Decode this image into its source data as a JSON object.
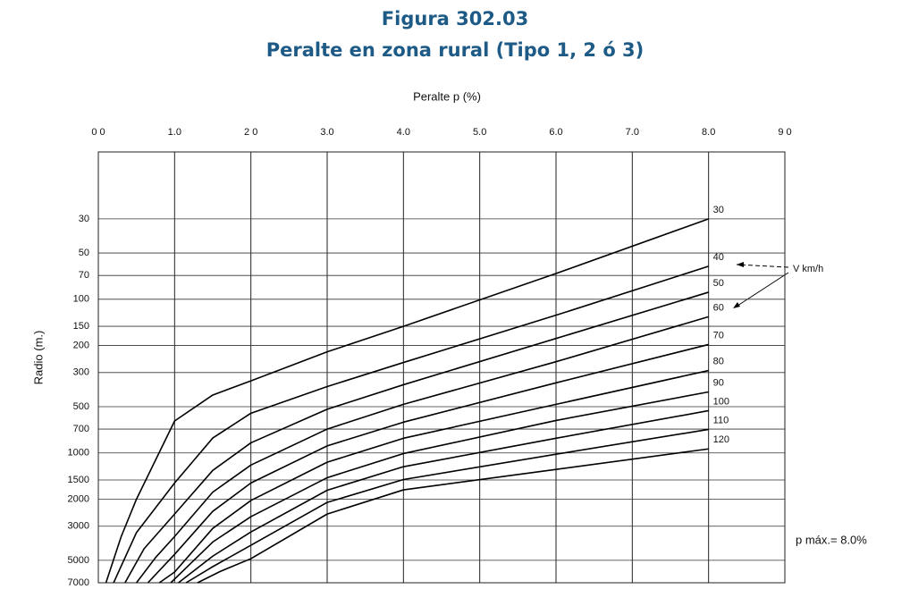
{
  "chart_data": {
    "type": "line",
    "title": "Figura 302.03",
    "subtitle": "Peralte en zona rural (Tipo 1, 2 ó 3)",
    "x_label": "Peralte p (%)",
    "y_label": "Radio (m.)",
    "annotations": [
      "V km/h",
      "p máx.= 8.0%"
    ],
    "xlim": [
      0,
      9
    ],
    "xticks": [
      {
        "value": 0,
        "label": "0 0"
      },
      {
        "value": 1,
        "label": "1.0"
      },
      {
        "value": 2,
        "label": "2 0"
      },
      {
        "value": 3,
        "label": "3.0"
      },
      {
        "value": 4,
        "label": "4.0"
      },
      {
        "value": 5,
        "label": "5.0"
      },
      {
        "value": 6,
        "label": "6.0"
      },
      {
        "value": 7,
        "label": "7.0"
      },
      {
        "value": 8,
        "label": "8.0"
      },
      {
        "value": 9,
        "label": "9 0"
      }
    ],
    "ylim": [
      7000,
      11
    ],
    "yticks": [
      30,
      50,
      70,
      100,
      150,
      200,
      300,
      500,
      700,
      1000,
      1500,
      2000,
      3000,
      5000,
      7000
    ],
    "log_y": true,
    "grid": true,
    "series": [
      {
        "name": "30",
        "color": "#000000",
        "x": [
          0.1,
          0.3,
          0.5,
          1,
          1.5,
          2,
          3,
          4,
          6,
          8
        ],
        "values": [
          7000,
          3500,
          2000,
          620,
          420,
          340,
          220,
          150,
          68,
          30
        ]
      },
      {
        "name": "40",
        "color": "#000000",
        "x": [
          0.2,
          0.5,
          1,
          1.5,
          2,
          3,
          4,
          6,
          8
        ],
        "values": [
          7000,
          3300,
          1570,
          800,
          552,
          370,
          258,
          127,
          61
        ]
      },
      {
        "name": "50",
        "color": "#000000",
        "x": [
          0.35,
          0.6,
          1,
          1.5,
          2,
          3,
          4,
          6,
          8
        ],
        "values": [
          7000,
          4200,
          2500,
          1300,
          860,
          520,
          360,
          180,
          90
        ]
      },
      {
        "name": "60",
        "color": "#000000",
        "x": [
          0.5,
          0.75,
          1,
          1.5,
          2,
          3,
          4,
          6,
          8
        ],
        "values": [
          7000,
          4800,
          3500,
          1800,
          1200,
          700,
          483,
          255,
          130
        ]
      },
      {
        "name": "70",
        "color": "#000000",
        "x": [
          0.65,
          1,
          1.5,
          2,
          3,
          4,
          6,
          8
        ],
        "values": [
          7000,
          4570,
          2400,
          1570,
          900,
          631,
          350,
          197
        ]
      },
      {
        "name": "80",
        "color": "#000000",
        "x": [
          0.8,
          1,
          1.5,
          2,
          3,
          4,
          6,
          8
        ],
        "values": [
          7000,
          5960,
          3100,
          2040,
          1150,
          803,
          483,
          291
        ]
      },
      {
        "name": "90",
        "color": "#000000",
        "x": [
          0.95,
          1.5,
          2,
          3,
          4,
          6,
          8
        ],
        "values": [
          7000,
          3800,
          2600,
          1450,
          1010,
          615,
          401
        ]
      },
      {
        "name": "100",
        "color": "#000000",
        "x": [
          1.05,
          1.5,
          2,
          3,
          4,
          6,
          8
        ],
        "values": [
          7000,
          4700,
          3270,
          1750,
          1230,
          803,
          531
        ]
      },
      {
        "name": "110",
        "color": "#000000",
        "x": [
          1.15,
          1.5,
          2,
          3,
          4,
          6,
          8
        ],
        "values": [
          7000,
          5500,
          3990,
          2100,
          1490,
          1020,
          703
        ]
      },
      {
        "name": "120",
        "color": "#000000",
        "x": [
          1.3,
          1.6,
          2,
          3,
          4,
          6,
          8
        ],
        "values": [
          7000,
          5900,
          4880,
          2500,
          1740,
          1280,
          942
        ]
      }
    ]
  }
}
